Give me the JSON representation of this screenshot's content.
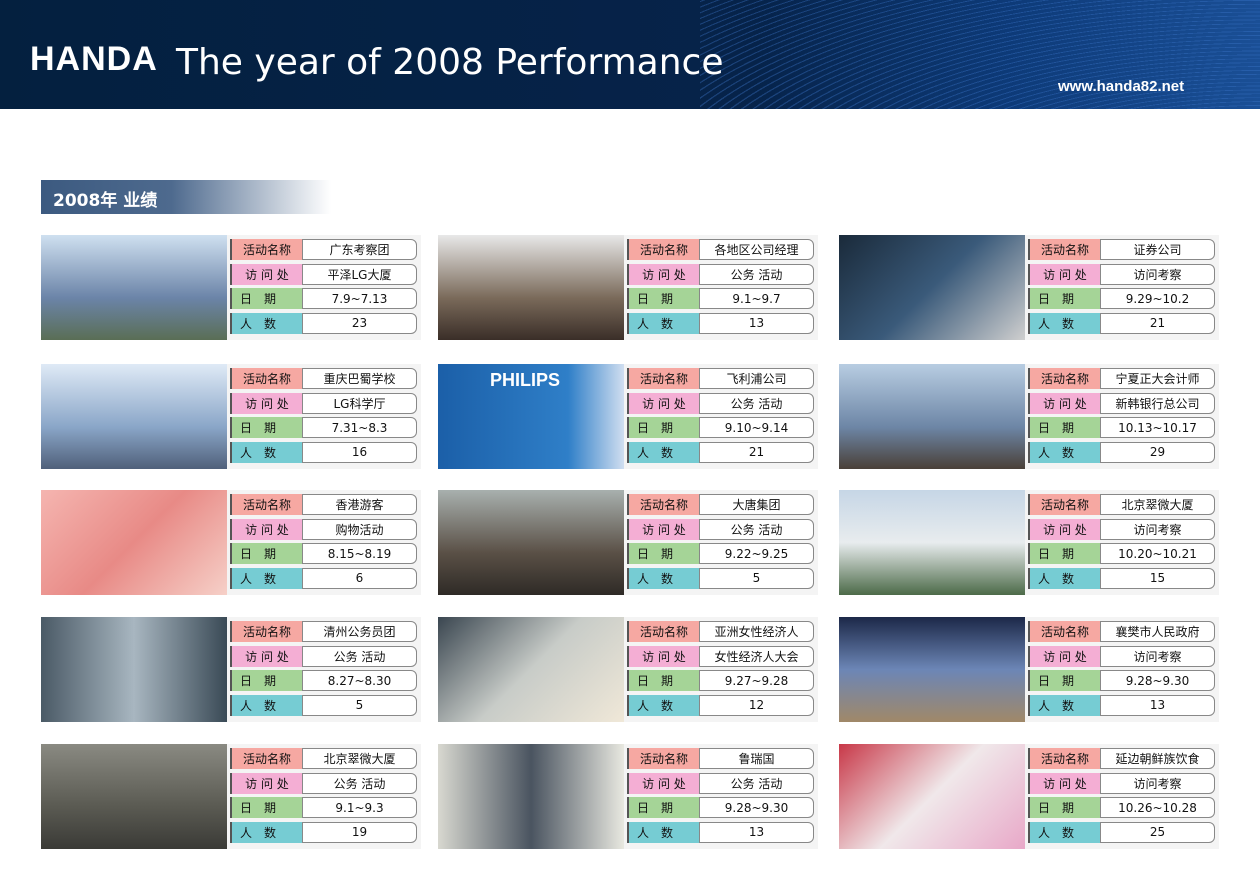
{
  "header": {
    "logo": "HANDA",
    "title": "The year of 2008  Performance",
    "url": "www.handa82.net"
  },
  "section_title": "2008年 业绩",
  "labels": [
    "活动名称",
    "访 问 处",
    "日　期",
    "人　数"
  ],
  "label_colors": [
    "#f6a8a2",
    "#f4aed4",
    "#a5d497",
    "#76ccd3"
  ],
  "cards": [
    {
      "name": "广东考察团",
      "place": "平泽LG大厦",
      "date": "7.9~7.13",
      "count": "23",
      "image": "office-building"
    },
    {
      "name": "各地区公司经理",
      "place": "公务 活动",
      "date": "9.1~9.7",
      "count": "13",
      "image": "seminar"
    },
    {
      "name": "证券公司",
      "place": "访问考察",
      "date": "9.29~10.2",
      "count": "21",
      "image": "stock-charts"
    },
    {
      "name": "重庆巴蜀学校",
      "place": "LG科学厅",
      "date": "7.31~8.3",
      "count": "16",
      "image": "glass-building"
    },
    {
      "name": "飞利浦公司",
      "place": "公务 活动",
      "date": "9.10~9.14",
      "count": "21",
      "image": "philips-logo",
      "image_text": "PHILIPS"
    },
    {
      "name": "宁夏正大会计师",
      "place": "新韩银行总公司",
      "date": "10.13~10.17",
      "count": "29",
      "image": "bank-tower"
    },
    {
      "name": "香港游客",
      "place": "购物活动",
      "date": "8.15~8.19",
      "count": "6",
      "image": "shopping"
    },
    {
      "name": "大唐集团",
      "place": "公务 活动",
      "date": "9.22~9.25",
      "count": "5",
      "image": "traditional-gate"
    },
    {
      "name": "北京翠微大厦",
      "place": "访问考察",
      "date": "10.20~10.21",
      "count": "15",
      "image": "hotel"
    },
    {
      "name": "清州公务员团",
      "place": "公务 活动",
      "date": "8.27~8.30",
      "count": "5",
      "image": "business-people"
    },
    {
      "name": "亚洲女性经济人",
      "place": "女性经济人大会",
      "date": "9.27~9.28",
      "count": "12",
      "image": "women-meeting"
    },
    {
      "name": "襄樊市人民政府",
      "place": "访问考察",
      "date": "9.28~9.30",
      "count": "13",
      "image": "city-collage"
    },
    {
      "name": "北京翠微大厦",
      "place": "公务 活动",
      "date": "9.1~9.3",
      "count": "19",
      "image": "conference"
    },
    {
      "name": "鲁瑞国",
      "place": "公务 活动",
      "date": "9.28~9.30",
      "count": "13",
      "image": "two-men"
    },
    {
      "name": "延边朝鲜族饮食",
      "place": "访问考察",
      "date": "10.26~10.28",
      "count": "25",
      "image": "korean-dance"
    }
  ]
}
